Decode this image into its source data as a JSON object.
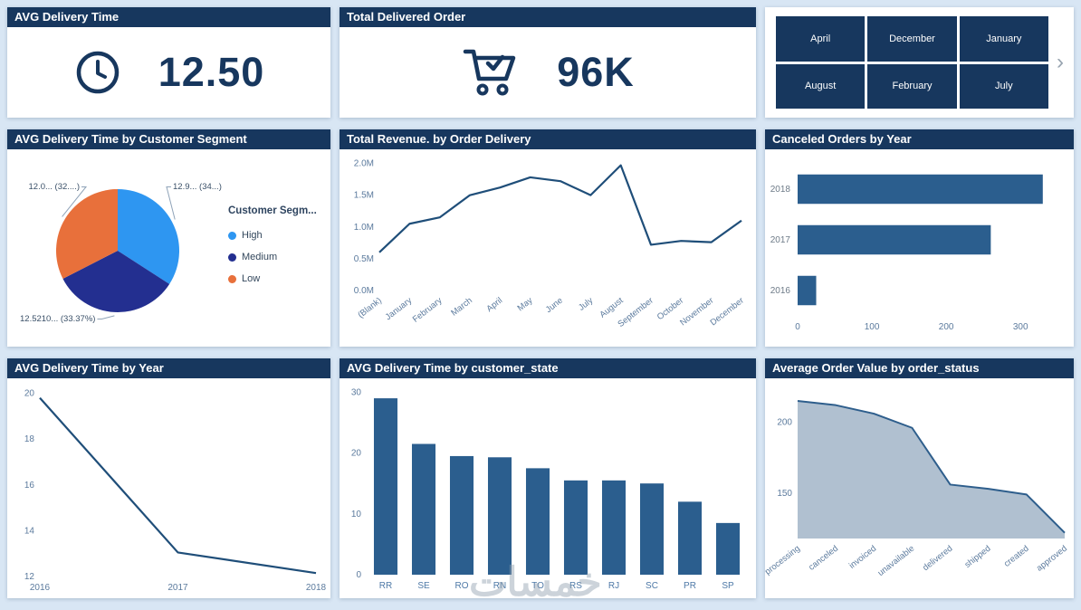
{
  "colors": {
    "header_bg": "#17375E",
    "header_text": "#FFFFFF",
    "kpi_value": "#17375E",
    "icon": "#17375E",
    "page_bg": "#D8E6F4",
    "bar": "#2B5E8E",
    "line": "#1F4E79",
    "area_fill": "#A7B9CB",
    "area_line": "#2E5E8C",
    "axis_label": "#5B7A9D",
    "pie_label": "#3A5068",
    "slicer_button_bg": "#17375E",
    "slicer_button_text": "#FFFFFF",
    "pie": {
      "high": "#2E96F1",
      "medium": "#232F90",
      "low": "#E8703B"
    }
  },
  "cards": {
    "avg_delivery": {
      "title": "AVG Delivery Time",
      "value": "12.50",
      "icon": "clock-icon"
    },
    "total_delivered": {
      "title": "Total Delivered Order",
      "value": "96K",
      "icon": "cart-check-icon"
    }
  },
  "slicer": {
    "months": [
      "April",
      "December",
      "January",
      "August",
      "February",
      "July"
    ],
    "next_icon": "›"
  },
  "watermark": "خمسات",
  "chart_data": [
    {
      "type": "pie",
      "title": "AVG Delivery Time by Customer Segment",
      "legend_title": "Customer Segm...",
      "legend_position": "right",
      "slices": [
        {
          "name": "High",
          "percent": 34.11,
          "label": "12.9... (34...)",
          "color_key": "high",
          "label_pos": [
            183,
            44
          ],
          "anchor": "start"
        },
        {
          "name": "Medium",
          "percent": 33.37,
          "label": "12.5210... (33.37%)",
          "color_key": "medium",
          "label_pos": [
            14,
            190
          ],
          "anchor": "start"
        },
        {
          "name": "Low",
          "percent": 32.52,
          "label": "12.0... (32....)",
          "color_key": "low",
          "label_pos": [
            80,
            44
          ],
          "anchor": "end"
        }
      ]
    },
    {
      "type": "line",
      "title": "Total Revenue. by Order Delivery",
      "categories": [
        "(Blank)",
        "January",
        "February",
        "March",
        "April",
        "May",
        "June",
        "July",
        "August",
        "September",
        "October",
        "November",
        "December"
      ],
      "values": [
        0.6,
        1.05,
        1.15,
        1.5,
        1.62,
        1.78,
        1.72,
        1.5,
        1.97,
        0.72,
        0.78,
        0.76,
        1.1
      ],
      "ylim": [
        0,
        2.05
      ],
      "yticks": [
        0,
        0.5,
        1,
        1.5,
        2
      ],
      "ytick_labels": [
        "0.0M",
        "0.5M",
        "1.0M",
        "1.5M",
        "2.0M"
      ],
      "rotate_x_labels": true,
      "grid": false
    },
    {
      "type": "barh",
      "title": "Canceled Orders by Year",
      "categories": [
        "2018",
        "2017",
        "2016"
      ],
      "values": [
        330,
        260,
        25
      ],
      "xlim": [
        0,
        340
      ],
      "xticks": [
        0,
        100,
        200,
        300
      ]
    },
    {
      "type": "line",
      "title": "AVG Delivery Time by Year",
      "categories": [
        "2016",
        "2017",
        "2018"
      ],
      "values": [
        19.8,
        13.05,
        12.15
      ],
      "ylim": [
        12,
        20.1
      ],
      "yticks": [
        12,
        14,
        16,
        18,
        20
      ],
      "ytick_labels": [
        "12",
        "14",
        "16",
        "18",
        "20"
      ],
      "rotate_x_labels": false,
      "grid": false
    },
    {
      "type": "bar",
      "title": "AVG Delivery Time by customer_state",
      "categories": [
        "RR",
        "SE",
        "RO",
        "RN",
        "TO",
        "RS",
        "RJ",
        "SC",
        "PR",
        "SP"
      ],
      "values": [
        29,
        21.5,
        19.5,
        19.3,
        17.5,
        15.5,
        15.5,
        15,
        12,
        8.5
      ],
      "ylim": [
        0,
        30.5
      ],
      "yticks": [
        0,
        10,
        20,
        30
      ]
    },
    {
      "type": "area",
      "title": "Average Order Value by order_status",
      "categories": [
        "processing",
        "canceled",
        "invoiced",
        "unavailable",
        "delivered",
        "shipped",
        "created",
        "approved"
      ],
      "values": [
        215,
        212,
        206,
        196,
        156,
        153,
        149,
        122
      ],
      "ylim": [
        118,
        222
      ],
      "yticks": [
        150,
        200
      ],
      "ytick_labels": [
        "150",
        "200"
      ],
      "rotate_x_labels": true
    }
  ]
}
